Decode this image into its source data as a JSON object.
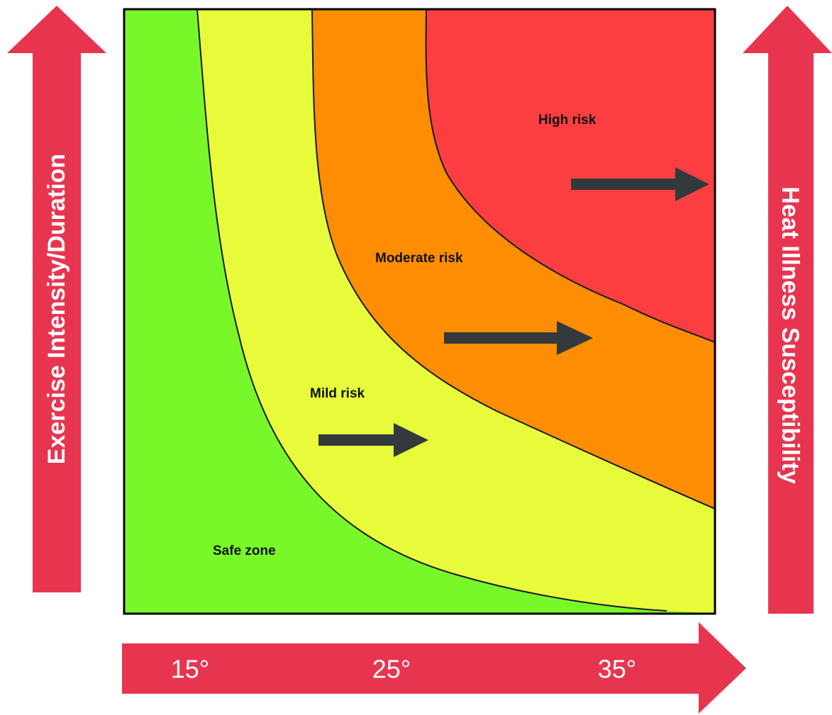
{
  "colors": {
    "safe": "#79f829",
    "mild": "#e8fb3a",
    "moderate": "#fd8d03",
    "high": "#fc3e40",
    "axis_arrow": "#e8354f",
    "shift_arrow": "#323a3d",
    "boundary": "#1a1a2e"
  },
  "zones": {
    "safe": "Safe zone",
    "mild": "Mild risk",
    "moderate": "Moderate risk",
    "high": "High risk"
  },
  "axes": {
    "left_label": "Exercise Intensity/Duration",
    "right_label": "Heat Illness Susceptibility",
    "temperature_ticks": [
      "15°",
      "25°",
      "35°"
    ]
  },
  "shift_arrow_icons": [
    "right-arrow-icon",
    "right-arrow-icon",
    "right-arrow-icon"
  ]
}
